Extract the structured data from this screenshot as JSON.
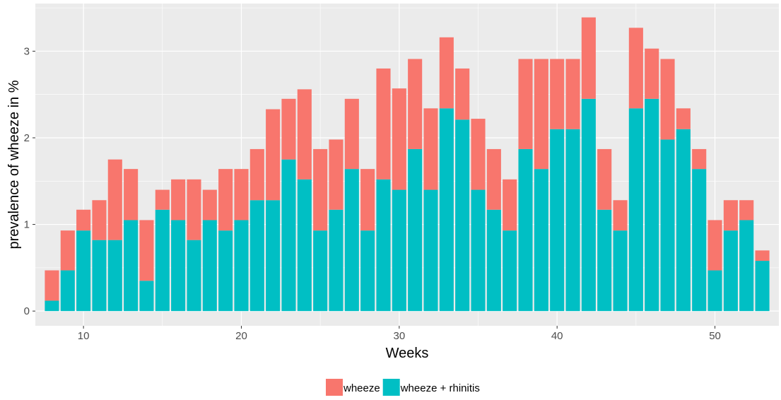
{
  "chart_data": {
    "type": "bar",
    "stacked": true,
    "xlabel": "Weeks",
    "ylabel": "prevalence of wheeze in %",
    "xlim": [
      6.95,
      54.05
    ],
    "ylim": [
      -0.17,
      3.55
    ],
    "xticks": [
      10,
      20,
      30,
      40,
      50
    ],
    "yticks": [
      0,
      1,
      2,
      3
    ],
    "grid": true,
    "legend_position": "bottom",
    "x": [
      8,
      9,
      10,
      11,
      12,
      13,
      14,
      15,
      16,
      17,
      18,
      19,
      20,
      21,
      22,
      23,
      24,
      25,
      26,
      27,
      28,
      29,
      30,
      31,
      32,
      33,
      34,
      35,
      36,
      37,
      38,
      39,
      40,
      41,
      42,
      43,
      44,
      45,
      46,
      47,
      48,
      49,
      50,
      51,
      52,
      53
    ],
    "series": [
      {
        "name": "wheeze + rhinitis",
        "color": "#00BFC4",
        "values": [
          0.12,
          0.47,
          0.93,
          0.82,
          0.82,
          1.05,
          0.35,
          1.17,
          1.05,
          0.82,
          1.05,
          0.93,
          1.05,
          1.28,
          1.28,
          1.75,
          1.52,
          0.93,
          1.17,
          1.64,
          0.93,
          1.52,
          1.4,
          1.87,
          1.4,
          2.34,
          2.21,
          1.4,
          1.17,
          0.93,
          1.87,
          1.64,
          2.1,
          2.1,
          2.45,
          1.17,
          0.93,
          2.34,
          2.45,
          1.98,
          2.1,
          1.64,
          0.47,
          0.93,
          1.05,
          0.58
        ]
      },
      {
        "name": "wheeze",
        "color": "#F8766D",
        "values": [
          0.35,
          0.46,
          0.24,
          0.46,
          0.93,
          0.59,
          0.7,
          0.23,
          0.47,
          0.7,
          0.35,
          0.71,
          0.59,
          0.59,
          1.05,
          0.7,
          1.04,
          0.94,
          0.81,
          0.81,
          0.71,
          1.28,
          1.17,
          1.04,
          0.94,
          0.82,
          0.59,
          0.82,
          0.7,
          0.59,
          1.04,
          1.27,
          0.81,
          0.81,
          0.94,
          0.7,
          0.35,
          0.93,
          0.58,
          0.93,
          0.24,
          0.23,
          0.58,
          0.35,
          0.23,
          0.12
        ]
      }
    ],
    "legend": [
      {
        "label": "wheeze",
        "color": "#F8766D"
      },
      {
        "label": "wheeze + rhinitis",
        "color": "#00BFC4"
      }
    ]
  }
}
